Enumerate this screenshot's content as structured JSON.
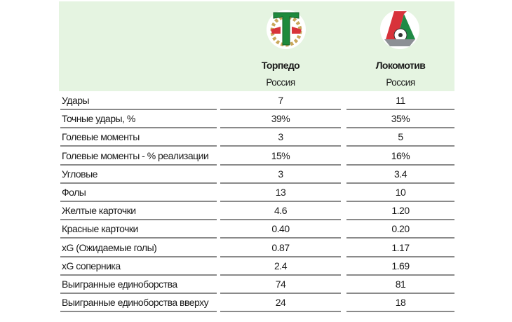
{
  "teams": [
    {
      "name": "Торпедо",
      "country": "Россия",
      "logo": "torpedo-logo"
    },
    {
      "name": "Локомотив",
      "country": "Россия",
      "logo": "lokomotiv-logo"
    }
  ],
  "colors": {
    "header_bg": "#e5f4e1",
    "divider": "#8a8a8a"
  },
  "rows": [
    {
      "label": "Удары",
      "a": "7",
      "b": "11"
    },
    {
      "label": "Точные удары, %",
      "a": "39%",
      "b": "35%"
    },
    {
      "label": "Голевые моменты",
      "a": "3",
      "b": "5"
    },
    {
      "label": "Голевые моменты - % реализации",
      "a": "15%",
      "b": "16%"
    },
    {
      "label": "Угловые",
      "a": "3",
      "b": "3.4"
    },
    {
      "label": "Фолы",
      "a": "13",
      "b": "10"
    },
    {
      "label": "Желтые карточки",
      "a": "4.6",
      "b": "1.20"
    },
    {
      "label": "Красные карточки",
      "a": "0.40",
      "b": "0.20"
    },
    {
      "label": "xG (Ожидаемые голы)",
      "a": "0.87",
      "b": "1.17"
    },
    {
      "label": "xG соперника",
      "a": "2.4",
      "b": "1.69"
    },
    {
      "label": "Выигранные единоборства",
      "a": "74",
      "b": "81"
    },
    {
      "label": "Выигранные единоборства вверху",
      "a": "24",
      "b": "18"
    }
  ]
}
